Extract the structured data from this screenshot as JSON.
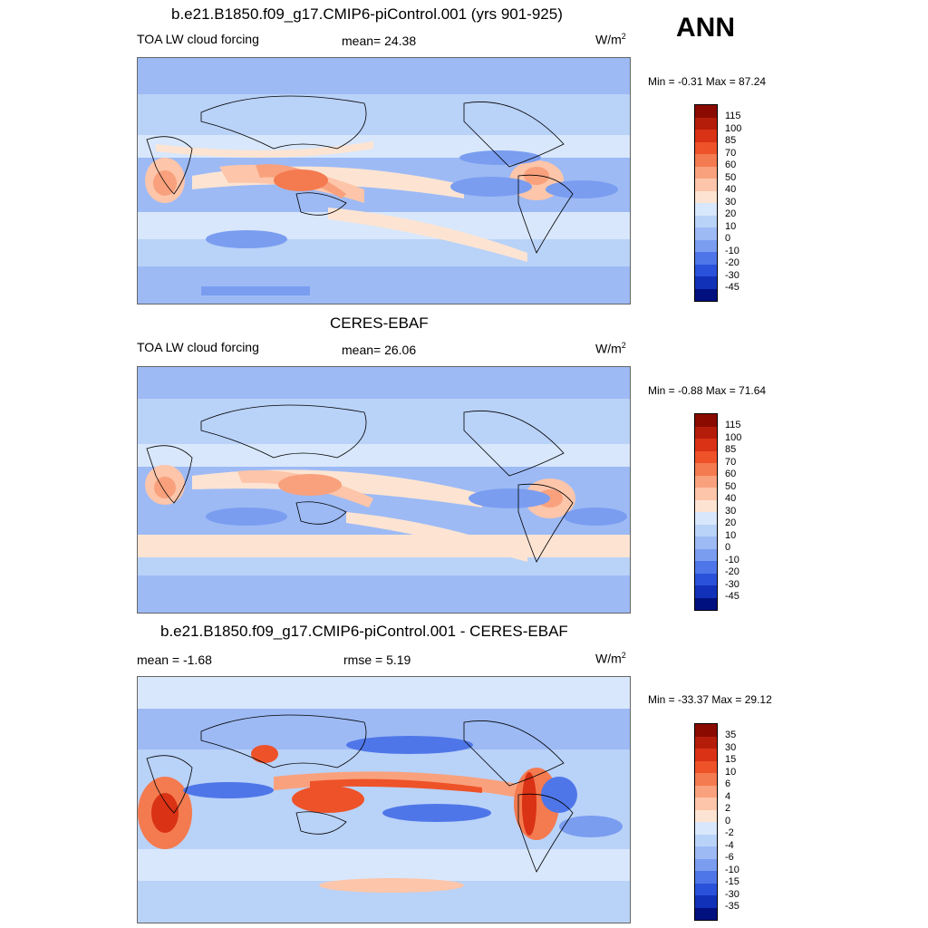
{
  "season": "ANN",
  "panels": [
    {
      "title": "b.e21.B1850.f09_g17.CMIP6-piControl.001 (yrs 901-925)",
      "left_label": "TOA LW cloud forcing",
      "mid_label": "mean=  24.38",
      "units_base": "W/m",
      "units_exp": "2",
      "minmax": "Min =  -0.31 Max =  87.24",
      "colorbar": {
        "labels": [
          "115",
          "100",
          "85",
          "70",
          "60",
          "50",
          "40",
          "30",
          "20",
          "10",
          "0",
          "-10",
          "-20",
          "-30",
          "-45"
        ],
        "colors": [
          "#8b0a00",
          "#b51d0b",
          "#d93215",
          "#ee5228",
          "#f47a4f",
          "#f9a17d",
          "#fdc5a9",
          "#fde4d2",
          "#d8e7fb",
          "#b9d2f8",
          "#9dbaf5",
          "#7a9df0",
          "#4f76e8",
          "#2a51d9",
          "#1131b8",
          "#00107e"
        ]
      },
      "map": "model"
    },
    {
      "title": "CERES-EBAF",
      "left_label": "TOA LW cloud forcing",
      "mid_label": "mean=  26.06",
      "units_base": "W/m",
      "units_exp": "2",
      "minmax": "Min =  -0.88 Max =  71.64",
      "colorbar": {
        "labels": [
          "115",
          "100",
          "85",
          "70",
          "60",
          "50",
          "40",
          "30",
          "20",
          "10",
          "0",
          "-10",
          "-20",
          "-30",
          "-45"
        ],
        "colors": [
          "#8b0a00",
          "#b51d0b",
          "#d93215",
          "#ee5228",
          "#f47a4f",
          "#f9a17d",
          "#fdc5a9",
          "#fde4d2",
          "#d8e7fb",
          "#b9d2f8",
          "#9dbaf5",
          "#7a9df0",
          "#4f76e8",
          "#2a51d9",
          "#1131b8",
          "#00107e"
        ]
      },
      "map": "obs"
    },
    {
      "title": "b.e21.B1850.f09_g17.CMIP6-piControl.001 - CERES-EBAF",
      "left_label": "mean =  -1.68",
      "mid_label": "rmse =   5.19",
      "units_base": "W/m",
      "units_exp": "2",
      "minmax": "Min = -33.37 Max =  29.12",
      "colorbar": {
        "labels": [
          "35",
          "30",
          "15",
          "10",
          "6",
          "4",
          "2",
          "0",
          "-2",
          "-4",
          "-6",
          "-10",
          "-15",
          "-30",
          "-35"
        ],
        "colors": [
          "#8b0a00",
          "#b51d0b",
          "#d93215",
          "#ee5228",
          "#f47a4f",
          "#f9a17d",
          "#fdc5a9",
          "#fde4d2",
          "#d8e7fb",
          "#b9d2f8",
          "#9dbaf5",
          "#7a9df0",
          "#4f76e8",
          "#2a51d9",
          "#1131b8",
          "#00107e"
        ]
      },
      "map": "diff"
    }
  ]
}
